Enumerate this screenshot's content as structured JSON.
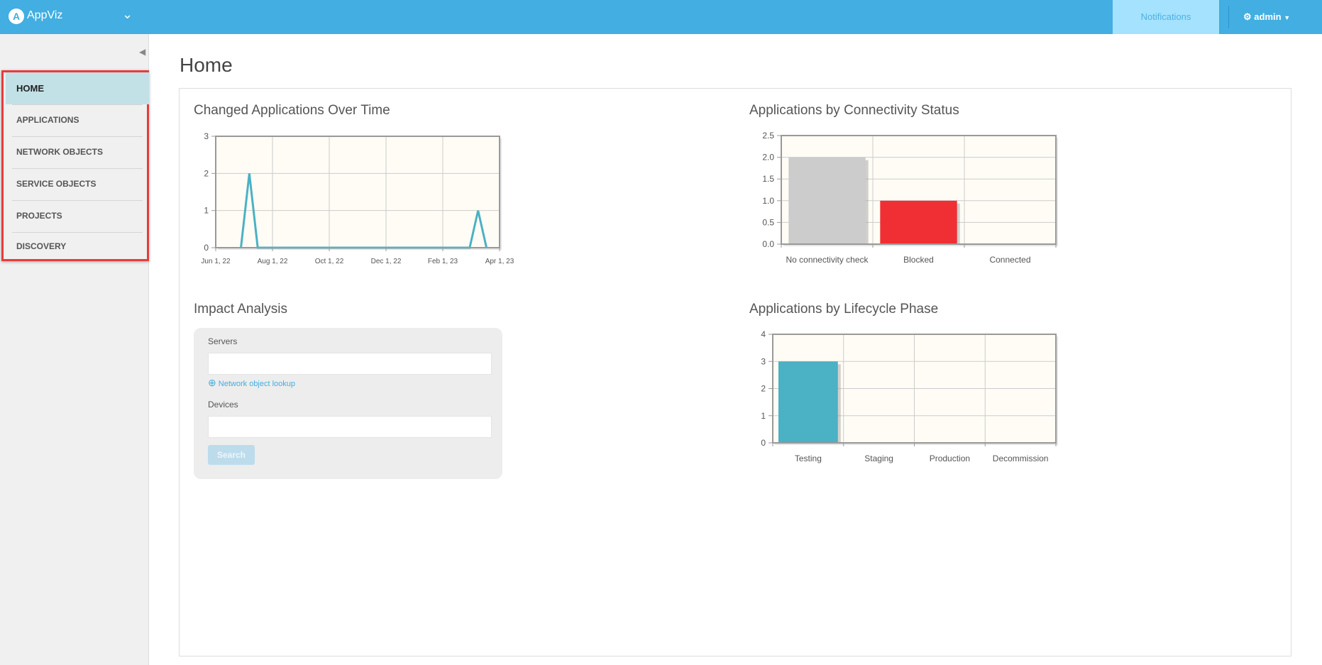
{
  "header": {
    "app_name": "AppViz",
    "logo_letter": "A",
    "notifications_label": "Notifications",
    "user_label": "admin"
  },
  "sidebar": {
    "items": [
      {
        "label": "HOME",
        "active": true
      },
      {
        "label": "APPLICATIONS"
      },
      {
        "label": "NETWORK OBJECTS"
      },
      {
        "label": "SERVICE OBJECTS"
      },
      {
        "label": "PROJECTS"
      },
      {
        "label": "DISCOVERY"
      }
    ]
  },
  "page": {
    "title": "Home"
  },
  "impact": {
    "title": "Impact Analysis",
    "servers_label": "Servers",
    "servers_value": "",
    "lookup_label": "Network object lookup",
    "devices_label": "Devices",
    "devices_value": "",
    "search_label": "Search"
  },
  "chart_data": [
    {
      "type": "line",
      "title": "Changed Applications Over Time",
      "x_ticks": [
        "Jun 1, 22",
        "Aug 1, 22",
        "Oct 1, 22",
        "Dec 1, 22",
        "Feb 1, 23",
        "Apr 1, 23"
      ],
      "xlim": [
        "2022-06-01",
        "2023-04-01"
      ],
      "ylim": [
        0,
        3
      ],
      "y_ticks": [
        "0",
        "1",
        "2",
        "3"
      ],
      "color": "#4bb1c4",
      "points": [
        [
          "2022-06-28",
          0
        ],
        [
          "2022-07-07",
          2
        ],
        [
          "2022-07-16",
          0
        ],
        [
          "2023-02-28",
          0
        ],
        [
          "2023-03-09",
          1
        ],
        [
          "2023-03-18",
          0
        ]
      ]
    },
    {
      "type": "bar",
      "title": "Applications by Connectivity Status",
      "categories": [
        "No connectivity check",
        "Blocked",
        "Connected"
      ],
      "values": [
        2,
        1,
        0
      ],
      "colors": [
        "#cccccc",
        "#ef2f33",
        "#cccccc"
      ],
      "ylim": [
        0,
        2.5
      ],
      "y_ticks": [
        "0.0",
        "0.5",
        "1.0",
        "1.5",
        "2.0",
        "2.5"
      ]
    },
    {
      "type": "bar",
      "title": "Applications by Lifecycle Phase",
      "categories": [
        "Testing",
        "Staging",
        "Production",
        "Decommission"
      ],
      "values": [
        3,
        0,
        0,
        0
      ],
      "colors": [
        "#4bb1c4",
        "#4bb1c4",
        "#4bb1c4",
        "#4bb1c4"
      ],
      "ylim": [
        0,
        4
      ],
      "y_ticks": [
        "0",
        "1",
        "2",
        "3",
        "4"
      ]
    }
  ]
}
